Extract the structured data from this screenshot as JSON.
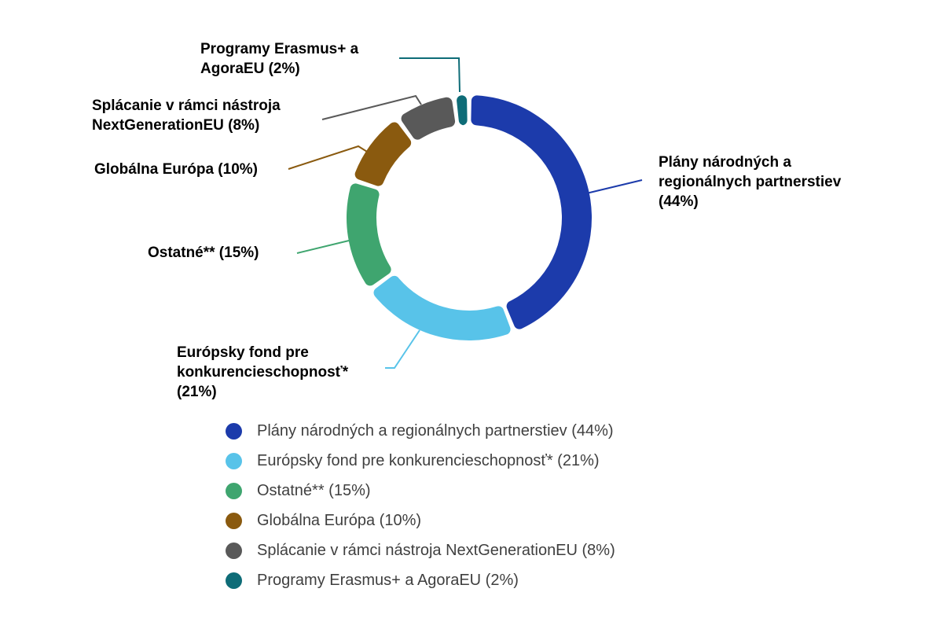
{
  "chart_data": {
    "type": "pie",
    "subtype": "donut",
    "title": "",
    "legend_position": "bottom",
    "start_angle_deg": 0,
    "clockwise": true,
    "series": [
      {
        "name": "Plány národných a regionálnych partnerstiev",
        "value": 44,
        "color": "#1C3BAB"
      },
      {
        "name": "Európsky fond pre konkurencieschopnosť*",
        "value": 21,
        "color": "#58C3E9"
      },
      {
        "name": "Ostatné**",
        "value": 15,
        "color": "#3FA56F"
      },
      {
        "name": "Globálna Európa",
        "value": 10,
        "color": "#8A5A0F"
      },
      {
        "name": "Splácanie v rámci nástroja NextGenerationEU",
        "value": 8,
        "color": "#595959"
      },
      {
        "name": "Programy Erasmus+ a AgoraEU",
        "value": 2,
        "color": "#0E6C77"
      }
    ]
  },
  "callouts": [
    {
      "lines": [
        "Plány národných a",
        "regionálnych partnerstiev",
        "(44%)"
      ]
    },
    {
      "lines": [
        "Európsky fond pre",
        "konkurencieschopnosť*",
        "(21%)"
      ]
    },
    {
      "lines": [
        "Ostatné** (15%)"
      ]
    },
    {
      "lines": [
        "Globálna Európa (10%)"
      ]
    },
    {
      "lines": [
        "Splácanie v rámci nástroja",
        "NextGenerationEU (8%)"
      ]
    },
    {
      "lines": [
        "Programy Erasmus+ a",
        "AgoraEU (2%)"
      ]
    }
  ],
  "legend": {
    "items": [
      {
        "label": "Plány národných a regionálnych partnerstiev (44%)"
      },
      {
        "label": "Európsky fond pre konkurencieschopnosť* (21%)"
      },
      {
        "label": "Ostatné** (15%)"
      },
      {
        "label": "Globálna Európa (10%)"
      },
      {
        "label": "Splácanie v rámci nástroja NextGenerationEU (8%)"
      },
      {
        "label": "Programy Erasmus+ a AgoraEU (2%)"
      }
    ]
  }
}
